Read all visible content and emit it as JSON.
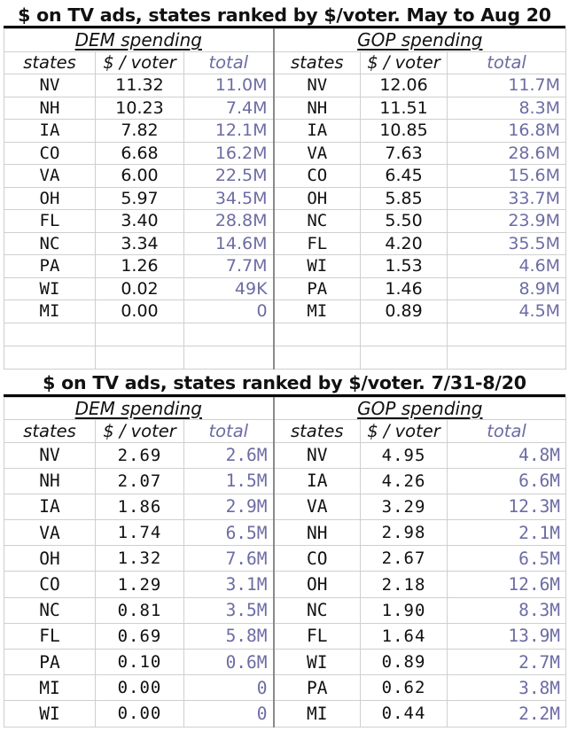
{
  "section_a": {
    "title": "$ on TV ads, states ranked by $/voter. May to Aug 20",
    "dem_label": "DEM spending",
    "gop_label": "GOP spending",
    "col_states": "states",
    "col_per_voter": "$ / voter",
    "col_total": "total",
    "rows": [
      {
        "dem_state": "NV",
        "dem_pv": "11.32",
        "dem_total": "11.0M",
        "gop_state": "NV",
        "gop_pv": "12.06",
        "gop_total": "11.7M"
      },
      {
        "dem_state": "NH",
        "dem_pv": "10.23",
        "dem_total": "7.4M",
        "gop_state": "NH",
        "gop_pv": "11.51",
        "gop_total": "8.3M"
      },
      {
        "dem_state": "IA",
        "dem_pv": "7.82",
        "dem_total": "12.1M",
        "gop_state": "IA",
        "gop_pv": "10.85",
        "gop_total": "16.8M"
      },
      {
        "dem_state": "CO",
        "dem_pv": "6.68",
        "dem_total": "16.2M",
        "gop_state": "VA",
        "gop_pv": "7.63",
        "gop_total": "28.6M"
      },
      {
        "dem_state": "VA",
        "dem_pv": "6.00",
        "dem_total": "22.5M",
        "gop_state": "CO",
        "gop_pv": "6.45",
        "gop_total": "15.6M"
      },
      {
        "dem_state": "OH",
        "dem_pv": "5.97",
        "dem_total": "34.5M",
        "gop_state": "OH",
        "gop_pv": "5.85",
        "gop_total": "33.7M"
      },
      {
        "dem_state": "FL",
        "dem_pv": "3.40",
        "dem_total": "28.8M",
        "gop_state": "NC",
        "gop_pv": "5.50",
        "gop_total": "23.9M"
      },
      {
        "dem_state": "NC",
        "dem_pv": "3.34",
        "dem_total": "14.6M",
        "gop_state": "FL",
        "gop_pv": "4.20",
        "gop_total": "35.5M"
      },
      {
        "dem_state": "PA",
        "dem_pv": "1.26",
        "dem_total": "7.7M",
        "gop_state": "WI",
        "gop_pv": "1.53",
        "gop_total": "4.6M"
      },
      {
        "dem_state": "WI",
        "dem_pv": "0.02",
        "dem_total": "49K",
        "gop_state": "PA",
        "gop_pv": "1.46",
        "gop_total": "8.9M"
      },
      {
        "dem_state": "MI",
        "dem_pv": "0.00",
        "dem_total": "0",
        "gop_state": "MI",
        "gop_pv": "0.89",
        "gop_total": "4.5M"
      }
    ]
  },
  "section_b": {
    "title": "$ on TV ads, states ranked by $/voter. 7/31-8/20",
    "dem_label": "DEM spending",
    "gop_label": "GOP spending",
    "col_states": "states",
    "col_per_voter": "$ / voter",
    "col_total": "total",
    "rows": [
      {
        "dem_state": "NV",
        "dem_pv": "2.69",
        "dem_total": "2.6M",
        "gop_state": "NV",
        "gop_pv": "4.95",
        "gop_total": "4.8M"
      },
      {
        "dem_state": "NH",
        "dem_pv": "2.07",
        "dem_total": "1.5M",
        "gop_state": "IA",
        "gop_pv": "4.26",
        "gop_total": "6.6M"
      },
      {
        "dem_state": "IA",
        "dem_pv": "1.86",
        "dem_total": "2.9M",
        "gop_state": "VA",
        "gop_pv": "3.29",
        "gop_total": "12.3M"
      },
      {
        "dem_state": "VA",
        "dem_pv": "1.74",
        "dem_total": "6.5M",
        "gop_state": "NH",
        "gop_pv": "2.98",
        "gop_total": "2.1M"
      },
      {
        "dem_state": "OH",
        "dem_pv": "1.32",
        "dem_total": "7.6M",
        "gop_state": "CO",
        "gop_pv": "2.67",
        "gop_total": "6.5M"
      },
      {
        "dem_state": "CO",
        "dem_pv": "1.29",
        "dem_total": "3.1M",
        "gop_state": "OH",
        "gop_pv": "2.18",
        "gop_total": "12.6M"
      },
      {
        "dem_state": "NC",
        "dem_pv": "0.81",
        "dem_total": "3.5M",
        "gop_state": "NC",
        "gop_pv": "1.90",
        "gop_total": "8.3M"
      },
      {
        "dem_state": "FL",
        "dem_pv": "0.69",
        "dem_total": "5.8M",
        "gop_state": "FL",
        "gop_pv": "1.64",
        "gop_total": "13.9M"
      },
      {
        "dem_state": "PA",
        "dem_pv": "0.10",
        "dem_total": "0.6M",
        "gop_state": "WI",
        "gop_pv": "0.89",
        "gop_total": "2.7M"
      },
      {
        "dem_state": "MI",
        "dem_pv": "0.00",
        "dem_total": "0",
        "gop_state": "PA",
        "gop_pv": "0.62",
        "gop_total": "3.8M"
      },
      {
        "dem_state": "WI",
        "dem_pv": "0.00",
        "dem_total": "0",
        "gop_state": "MI",
        "gop_pv": "0.44",
        "gop_total": "2.2M"
      }
    ]
  }
}
